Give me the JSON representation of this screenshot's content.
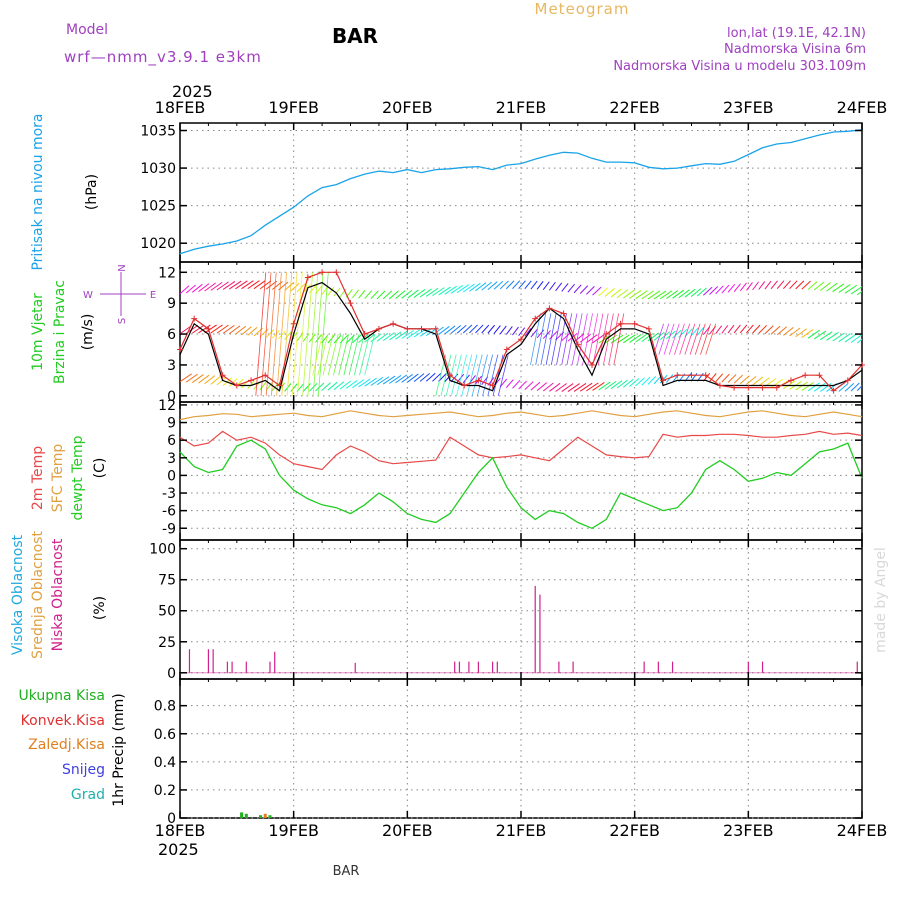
{
  "header": {
    "model_label": "Model",
    "model_name": "wrf—nmm_v3.9.1  e3km",
    "station": "BAR",
    "title": "Meteogram",
    "lonlat": "lon,lat (19.1E, 42.1N)",
    "elevation": "Nadmorska Visina 6m",
    "model_elevation": "Nadmorska Visina u modelu 303.109m",
    "year_top": "2025",
    "year_bottom": "2025",
    "footer_station": "BAR",
    "credit": "made by Angel"
  },
  "colors": {
    "pressure": "#1aa3e8",
    "wind_speed": "#000000",
    "wind_gust": "#e03030",
    "t2m": "#e84848",
    "tsfc": "#e0a040",
    "dewpt": "#22cc22",
    "cloud_high": "#22a8e0",
    "cloud_mid": "#e0a040",
    "cloud_low": "#d0208c",
    "precip_total": "#20b020",
    "precip_conv": "#e03030",
    "precip_frz": "#e08020",
    "snow": "#4040e0",
    "hail": "#20b0b0",
    "purple_text": "#a040c0",
    "title_text": "#e8b860"
  },
  "chart_data": [
    {
      "type": "line",
      "panel": "pressure",
      "ylabel_color": "Pritisak na nivou mora",
      "ylabel_unit": "(hPa)",
      "ylim": [
        1017.5,
        1036
      ],
      "yticks": [
        1020,
        1025,
        1030,
        1035
      ],
      "x": [
        0,
        3,
        6,
        9,
        12,
        15,
        18,
        21,
        24,
        27,
        30,
        33,
        36,
        39,
        42,
        45,
        48,
        51,
        54,
        57,
        60,
        63,
        66,
        69,
        72,
        75,
        78,
        81,
        84,
        87,
        90,
        93,
        96,
        99,
        102,
        105,
        108,
        111,
        114,
        117,
        120,
        123,
        126,
        129,
        132,
        135,
        138,
        141,
        144
      ],
      "series": [
        {
          "name": "MSLP",
          "values": [
            1018.6,
            1019.2,
            1019.6,
            1019.9,
            1020.3,
            1021.0,
            1022.4,
            1023.6,
            1024.8,
            1026.3,
            1027.4,
            1027.8,
            1028.6,
            1029.2,
            1029.6,
            1029.4,
            1029.8,
            1029.4,
            1029.8,
            1029.9,
            1030.1,
            1030.2,
            1029.8,
            1030.4,
            1030.6,
            1031.2,
            1031.7,
            1032.1,
            1032.0,
            1031.3,
            1030.8,
            1030.8,
            1030.7,
            1030.1,
            1029.9,
            1030.0,
            1030.3,
            1030.6,
            1030.5,
            1030.9,
            1031.8,
            1032.7,
            1033.2,
            1033.4,
            1033.9,
            1034.4,
            1034.8,
            1034.9,
            1035.1
          ]
        }
      ]
    },
    {
      "type": "line",
      "panel": "wind",
      "ylabel_1": "10m Vjetar",
      "ylabel_2": "Brzina i Pravac",
      "ylabel_unit": "(m/s)",
      "compass": [
        "W",
        "E",
        "N",
        "S"
      ],
      "ylim": [
        -0.6,
        13
      ],
      "yticks": [
        0,
        3,
        6,
        9,
        12
      ],
      "x": [
        0,
        3,
        6,
        9,
        12,
        15,
        18,
        21,
        24,
        27,
        30,
        33,
        36,
        39,
        42,
        45,
        48,
        51,
        54,
        57,
        60,
        63,
        66,
        69,
        72,
        75,
        78,
        81,
        84,
        87,
        90,
        93,
        96,
        99,
        102,
        105,
        108,
        111,
        114,
        117,
        120,
        123,
        126,
        129,
        132,
        135,
        138,
        141,
        144
      ],
      "series": [
        {
          "name": "Wind speed",
          "values": [
            4.0,
            7.0,
            6.0,
            1.5,
            1.0,
            1.0,
            1.5,
            0.5,
            6.0,
            10.5,
            11.0,
            10.0,
            8.0,
            5.5,
            6.5,
            7.0,
            6.5,
            6.5,
            6.0,
            1.5,
            1.0,
            1.0,
            0.5,
            4.0,
            5.0,
            7.0,
            8.5,
            7.5,
            4.5,
            2.0,
            5.5,
            6.5,
            6.5,
            6.0,
            1.0,
            1.5,
            1.5,
            1.5,
            1.0,
            1.0,
            1.0,
            1.0,
            1.0,
            1.0,
            1.0,
            1.0,
            1.0,
            1.5,
            2.5
          ]
        },
        {
          "name": "Wind gust",
          "values": [
            4.5,
            7.5,
            6.5,
            2.0,
            1.0,
            1.5,
            2.0,
            1.0,
            7.0,
            11.5,
            12.0,
            12.0,
            9.0,
            6.0,
            6.5,
            7.0,
            6.5,
            6.5,
            6.5,
            2.0,
            1.0,
            1.5,
            1.0,
            4.5,
            5.5,
            7.5,
            8.5,
            8.0,
            5.0,
            3.0,
            6.0,
            7.0,
            7.0,
            6.5,
            1.5,
            2.0,
            2.0,
            2.0,
            1.0,
            0.8,
            0.8,
            0.8,
            0.8,
            1.5,
            2.0,
            2.0,
            0.5,
            1.5,
            3.0
          ]
        }
      ]
    },
    {
      "type": "line",
      "panel": "temperature",
      "ylabel_1": "2m Temp",
      "ylabel_2": "SFC Temp",
      "ylabel_3": "dewpt Temp",
      "ylabel_unit": "(C)",
      "ylim": [
        -11,
        12.5
      ],
      "yticks": [
        -9,
        -6,
        -3,
        0,
        3,
        6,
        9,
        12
      ],
      "x": [
        0,
        3,
        6,
        9,
        12,
        15,
        18,
        21,
        24,
        27,
        30,
        33,
        36,
        39,
        42,
        45,
        48,
        51,
        54,
        57,
        60,
        63,
        66,
        69,
        72,
        75,
        78,
        81,
        84,
        87,
        90,
        93,
        96,
        99,
        102,
        105,
        108,
        111,
        114,
        117,
        120,
        123,
        126,
        129,
        132,
        135,
        138,
        141,
        144
      ],
      "series": [
        {
          "name": "2m Temp",
          "values": [
            6.5,
            5.0,
            5.5,
            7.5,
            6.0,
            6.5,
            5.5,
            3.5,
            2.0,
            1.5,
            1.0,
            3.5,
            5.0,
            4.0,
            2.5,
            2.0,
            2.2,
            2.4,
            2.6,
            6.5,
            5.0,
            3.5,
            3.0,
            3.2,
            3.5,
            3.0,
            2.5,
            4.5,
            6.5,
            5.0,
            3.5,
            3.2,
            3.0,
            3.2,
            7.0,
            6.5,
            6.8,
            6.8,
            7.0,
            7.0,
            6.8,
            6.5,
            6.5,
            6.8,
            7.0,
            7.5,
            7.0,
            7.2,
            6.8
          ]
        },
        {
          "name": "SFC Temp",
          "values": [
            9.5,
            10.0,
            10.2,
            10.5,
            10.4,
            10.0,
            10.2,
            10.4,
            10.6,
            10.2,
            10.0,
            10.5,
            11.0,
            10.6,
            10.2,
            10.0,
            10.2,
            10.4,
            10.6,
            10.8,
            10.4,
            10.0,
            10.2,
            10.6,
            10.8,
            10.4,
            10.0,
            10.2,
            10.6,
            11.0,
            10.6,
            10.2,
            10.0,
            10.4,
            10.8,
            11.0,
            10.6,
            10.2,
            10.0,
            10.4,
            10.8,
            11.0,
            10.6,
            10.2,
            10.0,
            10.4,
            10.8,
            10.4,
            10.0
          ]
        },
        {
          "name": "dewpt Temp",
          "values": [
            4.0,
            1.5,
            0.5,
            1.0,
            5.0,
            6.0,
            4.5,
            0.0,
            -2.5,
            -4.0,
            -5.0,
            -5.5,
            -6.5,
            -5.0,
            -3.0,
            -4.5,
            -6.5,
            -7.5,
            -8.0,
            -6.5,
            -3.0,
            0.5,
            3.0,
            -2.0,
            -5.5,
            -7.5,
            -6.0,
            -6.5,
            -8.0,
            -9.0,
            -7.5,
            -3.0,
            -4.0,
            -5.0,
            -6.0,
            -5.5,
            -3.0,
            1.0,
            2.5,
            1.0,
            -1.0,
            -0.5,
            0.5,
            0.0,
            2.0,
            4.0,
            4.5,
            5.5,
            -0.5
          ]
        }
      ]
    },
    {
      "type": "bar",
      "panel": "clouds",
      "ylabel_1": "Visoka Oblacnost",
      "ylabel_2": "Srednja Oblacnost",
      "ylabel_3": "Niska Oblacnost",
      "ylabel_unit": "(%)",
      "ylim": [
        -5,
        107
      ],
      "yticks": [
        0,
        25,
        50,
        75,
        100
      ],
      "series": [
        {
          "name": "Niska Oblacnost",
          "x": [
            2,
            6,
            7,
            10,
            11,
            14,
            19,
            20,
            37,
            58,
            59,
            61,
            63,
            66,
            67,
            75,
            76,
            80,
            83,
            98,
            101,
            104,
            120,
            123,
            143
          ],
          "values": [
            19,
            19,
            19,
            9,
            9,
            9,
            9,
            17,
            8,
            9,
            9,
            9,
            9,
            9,
            9,
            70,
            63,
            9,
            9,
            9,
            9,
            9,
            9,
            9,
            9
          ]
        }
      ]
    },
    {
      "type": "bar",
      "panel": "precipitation",
      "ylabel_unit": "1hr Precip (mm)",
      "legend": [
        "Ukupna Kisa",
        "Konvek.Kisa",
        "Zaledj.Kisa",
        "Snijeg",
        "Grad"
      ],
      "ylim": [
        0,
        0.99
      ],
      "yticks": [
        0,
        0.2,
        0.4,
        0.6,
        0.8
      ],
      "x_labels": [
        "18FEB",
        "19FEB",
        "20FEB",
        "21FEB",
        "22FEB",
        "23FEB",
        "24FEB"
      ],
      "series": [
        {
          "name": "Ukupna Kisa",
          "x": [
            13,
            14,
            17,
            19
          ],
          "values": [
            0.04,
            0.03,
            0.02,
            0.02
          ]
        },
        {
          "name": "Zaledj.Kisa",
          "x": [
            18
          ],
          "values": [
            0.03
          ]
        }
      ]
    }
  ]
}
